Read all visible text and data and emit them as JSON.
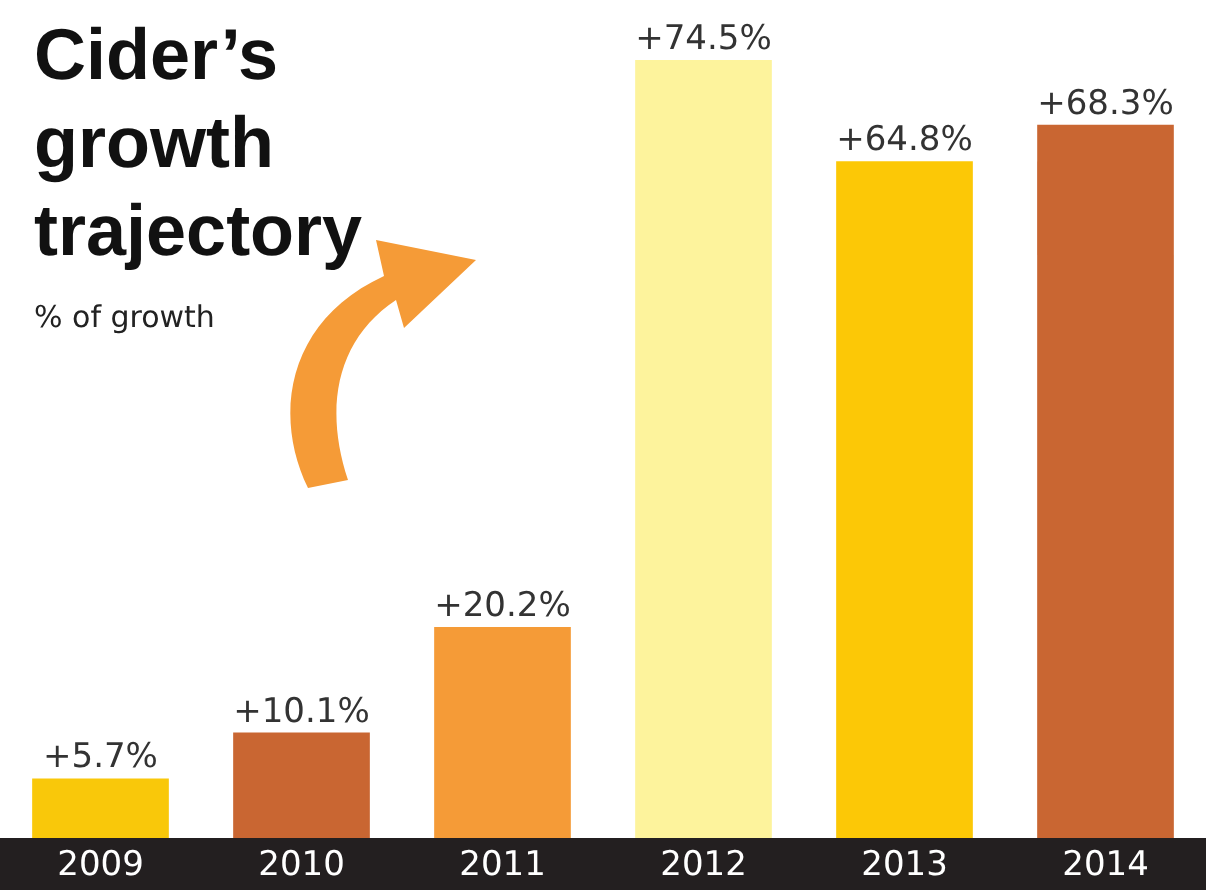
{
  "chart_data": {
    "type": "bar",
    "title": "Cider’s growth trajectory",
    "subtitle": "% of growth",
    "categories": [
      "2009",
      "2010",
      "2011",
      "2012",
      "2013",
      "2014"
    ],
    "values": [
      5.7,
      10.1,
      20.2,
      74.5,
      64.8,
      68.3
    ],
    "colors": [
      "#f9c80a",
      "#c96632",
      "#f59b37",
      "#fdf39c",
      "#fcc806",
      "#c96632"
    ],
    "value_labels": [
      "+5.7%",
      "+10.1%",
      "+20.2%",
      "+74.5%",
      "+64.8%",
      "+68.3%"
    ]
  }
}
